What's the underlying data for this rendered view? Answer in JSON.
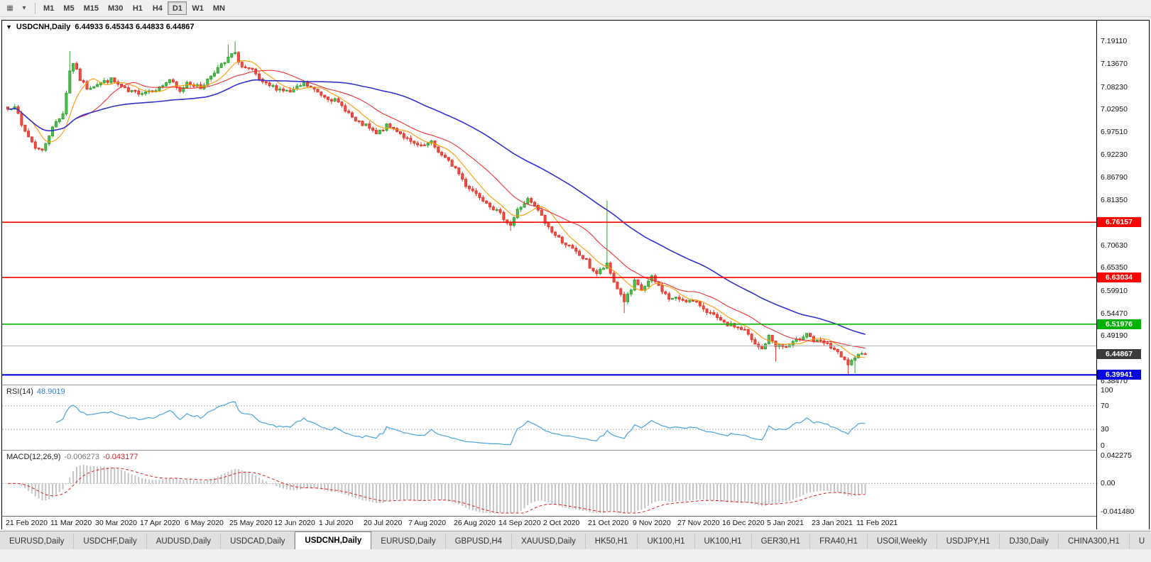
{
  "toolbar": {
    "icons": [
      {
        "name": "charts-grid-icon",
        "glyph": "▦"
      },
      {
        "name": "chart-menu-icon",
        "glyph": "▾"
      }
    ],
    "timeframes": [
      "M1",
      "M5",
      "M15",
      "M30",
      "H1",
      "H4",
      "D1",
      "W1",
      "MN"
    ],
    "active_timeframe": "D1"
  },
  "chart_header": {
    "collapse_icon": "▼",
    "symbol": "USDCNH,Daily",
    "ohlc": "6.44933 6.45343 6.44833 6.44867"
  },
  "rsi_panel": {
    "name": "RSI(14)",
    "value": "48.9019",
    "scale": [
      "100",
      "70",
      "30",
      "0"
    ]
  },
  "macd_panel": {
    "name": "MACD(12,26,9)",
    "value_main": "-0.006273",
    "value_signal": "-0.043177",
    "scale": [
      "0.042275",
      "0.00",
      "-0.041480"
    ]
  },
  "time_axis": {
    "labels": [
      "21 Feb 2020",
      "11 Mar 2020",
      "30 Mar 2020",
      "17 Apr 2020",
      "6 May 2020",
      "25 May 2020",
      "12 Jun 2020",
      "1 Jul 2020",
      "20 Jul 2020",
      "7 Aug 2020",
      "26 Aug 2020",
      "14 Sep 2020",
      "2 Oct 2020",
      "21 Oct 2020",
      "9 Nov 2020",
      "27 Nov 2020",
      "16 Dec 2020",
      "5 Jan 2021",
      "23 Jan 2021",
      "11 Feb 2021"
    ]
  },
  "tab_bar": {
    "active_index": 4,
    "tabs": [
      "EURUSD,Daily",
      "USDCHF,Daily",
      "AUDUSD,Daily",
      "USDCAD,Daily",
      "USDCNH,Daily",
      "EURUSD,Daily",
      "GBPUSD,H4",
      "XAUUSD,Daily",
      "HK50,H1",
      "UK100,H1",
      "UK100,H1",
      "GER30,H1",
      "FRA40,H1",
      "USOil,Weekly",
      "USDJPY,H1",
      "DJ30,Daily",
      "CHINA300,H1",
      "U"
    ]
  },
  "chart_data": {
    "type": "candlestick",
    "symbol": "USDCNH",
    "timeframe": "Daily",
    "ohlc_current": {
      "open": 6.44933,
      "high": 6.45343,
      "low": 6.44833,
      "close": 6.44867
    },
    "current_price_badge": "6.44867",
    "current_price_color": "#3c3c3c",
    "y_axis": {
      "min": 6.3847,
      "max": 7.24
    },
    "price_ticks": [
      "7.19110",
      "7.13670",
      "7.08230",
      "7.02950",
      "6.97510",
      "6.92230",
      "6.86790",
      "6.81350",
      "6.70630",
      "6.65350",
      "6.59910",
      "6.54470",
      "6.49190",
      "6.38470"
    ],
    "hlines": [
      {
        "price": 6.76157,
        "color": "#ff0000",
        "badge": "6.76157",
        "width": 1.6
      },
      {
        "price": 6.63034,
        "color": "#ff0000",
        "badge": "6.63034",
        "width": 1.6
      },
      {
        "price": 6.51976,
        "color": "#00b300",
        "badge": "6.51976",
        "width": 1.6
      },
      {
        "price": 6.39941,
        "color": "#0000e0",
        "badge": "6.39941",
        "width": 2.2
      },
      {
        "price": 6.468,
        "color": "#b3b3b3",
        "badge": null,
        "width": 1
      }
    ],
    "candle_count": 250,
    "up_color": "#2ea12e",
    "down_color": "#e3352a",
    "price_path": [
      [
        0,
        7.03
      ],
      [
        2,
        7.04
      ],
      [
        4,
        6.99
      ],
      [
        6,
        6.965
      ],
      [
        8,
        6.94
      ],
      [
        10,
        6.93
      ],
      [
        12,
        6.97
      ],
      [
        14,
        7.0
      ],
      [
        16,
        7.02
      ],
      [
        18,
        7.12
      ],
      [
        19,
        7.14
      ],
      [
        21,
        7.1
      ],
      [
        23,
        7.08
      ],
      [
        26,
        7.09
      ],
      [
        30,
        7.1
      ],
      [
        35,
        7.07
      ],
      [
        39,
        7.07
      ],
      [
        44,
        7.08
      ],
      [
        47,
        7.1
      ],
      [
        50,
        7.07
      ],
      [
        52,
        7.095
      ],
      [
        56,
        7.08
      ],
      [
        60,
        7.12
      ],
      [
        63,
        7.14
      ],
      [
        65,
        7.16
      ],
      [
        66,
        7.16
      ],
      [
        68,
        7.13
      ],
      [
        71,
        7.12
      ],
      [
        74,
        7.09
      ],
      [
        78,
        7.08
      ],
      [
        82,
        7.07
      ],
      [
        86,
        7.09
      ],
      [
        89,
        7.075
      ],
      [
        91,
        7.065
      ],
      [
        95,
        7.05
      ],
      [
        98,
        7.03
      ],
      [
        101,
        7.0
      ],
      [
        104,
        6.99
      ],
      [
        107,
        6.97
      ],
      [
        110,
        6.99
      ],
      [
        113,
        6.98
      ],
      [
        117,
        6.95
      ],
      [
        120,
        6.94
      ],
      [
        123,
        6.95
      ],
      [
        126,
        6.92
      ],
      [
        130,
        6.89
      ],
      [
        133,
        6.85
      ],
      [
        136,
        6.83
      ],
      [
        139,
        6.81
      ],
      [
        143,
        6.78
      ],
      [
        146,
        6.755
      ],
      [
        148,
        6.79
      ],
      [
        151,
        6.815
      ],
      [
        154,
        6.79
      ],
      [
        156,
        6.76
      ],
      [
        159,
        6.73
      ],
      [
        162,
        6.71
      ],
      [
        165,
        6.69
      ],
      [
        168,
        6.67
      ],
      [
        169,
        6.655
      ],
      [
        171,
        6.64
      ],
      [
        174,
        6.66
      ],
      [
        176,
        6.62
      ],
      [
        179,
        6.575
      ],
      [
        181,
        6.6
      ],
      [
        182,
        6.62
      ],
      [
        184,
        6.6
      ],
      [
        187,
        6.63
      ],
      [
        189,
        6.61
      ],
      [
        192,
        6.58
      ],
      [
        195,
        6.58
      ],
      [
        198,
        6.575
      ],
      [
        201,
        6.565
      ],
      [
        204,
        6.545
      ],
      [
        208,
        6.52
      ],
      [
        211,
        6.515
      ],
      [
        214,
        6.505
      ],
      [
        217,
        6.47
      ],
      [
        219,
        6.46
      ],
      [
        221,
        6.49
      ],
      [
        223,
        6.47
      ],
      [
        226,
        6.465
      ],
      [
        229,
        6.48
      ],
      [
        232,
        6.5
      ],
      [
        234,
        6.48
      ],
      [
        237,
        6.475
      ],
      [
        240,
        6.46
      ],
      [
        242,
        6.44
      ],
      [
        244,
        6.425
      ],
      [
        246,
        6.435
      ],
      [
        248,
        6.455
      ],
      [
        249,
        6.44867
      ]
    ],
    "spikes": [
      {
        "i": 18,
        "h": 7.168
      },
      {
        "i": 64,
        "h": 7.183
      },
      {
        "i": 66,
        "h": 7.191
      },
      {
        "i": 146,
        "l": 6.741
      },
      {
        "i": 174,
        "h": 6.813
      },
      {
        "i": 179,
        "l": 6.546
      },
      {
        "i": 223,
        "l": 6.431
      },
      {
        "i": 244,
        "l": 6.401
      },
      {
        "i": 246,
        "l": 6.403
      }
    ],
    "moving_averages": [
      {
        "period": 8,
        "color": "#ff9900"
      },
      {
        "period": 20,
        "color": "#ee3333"
      },
      {
        "period": 55,
        "color": "#3333cc"
      }
    ],
    "rsi": {
      "period": 14,
      "value": 48.9019,
      "levels": [
        70,
        30
      ],
      "color": "#4aa3df"
    },
    "macd": {
      "fast": 12,
      "slow": 26,
      "signal": 9,
      "scale_max": 0.042275,
      "scale_min": -0.04148,
      "hist_color": "#c4c4c4",
      "signal_color": "#e02020"
    }
  }
}
